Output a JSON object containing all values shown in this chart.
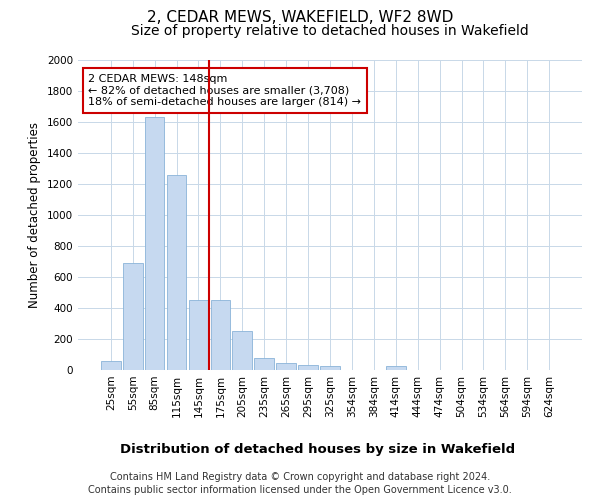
{
  "title": "2, CEDAR MEWS, WAKEFIELD, WF2 8WD",
  "subtitle": "Size of property relative to detached houses in Wakefield",
  "xlabel": "Distribution of detached houses by size in Wakefield",
  "ylabel": "Number of detached properties",
  "footer_line1": "Contains HM Land Registry data © Crown copyright and database right 2024.",
  "footer_line2": "Contains public sector information licensed under the Open Government Licence v3.0.",
  "categories": [
    "25sqm",
    "55sqm",
    "85sqm",
    "115sqm",
    "145sqm",
    "175sqm",
    "205sqm",
    "235sqm",
    "265sqm",
    "295sqm",
    "325sqm",
    "354sqm",
    "384sqm",
    "414sqm",
    "444sqm",
    "474sqm",
    "504sqm",
    "534sqm",
    "564sqm",
    "594sqm",
    "624sqm"
  ],
  "values": [
    55,
    690,
    1630,
    1260,
    450,
    450,
    250,
    80,
    45,
    30,
    25,
    0,
    0,
    25,
    0,
    0,
    0,
    0,
    0,
    0,
    0
  ],
  "bar_color": "#c6d9f0",
  "bar_edge_color": "#8ab4d8",
  "grid_color": "#c8d8e8",
  "background_color": "#ffffff",
  "plot_bg_color": "#ffffff",
  "vline_x": 4.5,
  "vline_color": "#cc0000",
  "annotation_line1": "2 CEDAR MEWS: 148sqm",
  "annotation_line2": "← 82% of detached houses are smaller (3,708)",
  "annotation_line3": "18% of semi-detached houses are larger (814) →",
  "annotation_box_color": "#cc0000",
  "ylim": [
    0,
    2000
  ],
  "yticks": [
    0,
    200,
    400,
    600,
    800,
    1000,
    1200,
    1400,
    1600,
    1800,
    2000
  ],
  "title_fontsize": 11,
  "subtitle_fontsize": 10,
  "xlabel_fontsize": 9.5,
  "ylabel_fontsize": 8.5,
  "tick_fontsize": 7.5,
  "annotation_fontsize": 8,
  "footer_fontsize": 7
}
